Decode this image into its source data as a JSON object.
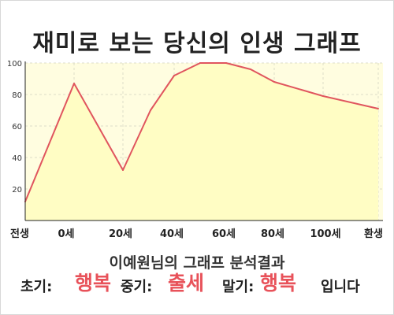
{
  "chart_data": {
    "type": "area",
    "title": "재미로 보는 당신의 인생 그래프",
    "x_tick_labels": [
      "전생",
      "0세",
      "20세",
      "40세",
      "60세",
      "80세",
      "100세",
      "환생"
    ],
    "y_ticks": [
      20,
      40,
      60,
      80,
      100
    ],
    "ylim": [
      0,
      100
    ],
    "grid": true,
    "legend": "none",
    "x": [
      "전생",
      "0세",
      "20세",
      "30세",
      "40세",
      "50세",
      "60세",
      "70세",
      "80세",
      "100세",
      "환생"
    ],
    "values": [
      12,
      87,
      32,
      70,
      92,
      100,
      100,
      96,
      88,
      79,
      71
    ],
    "colors": {
      "line": "#e0555e",
      "fill": "#fffdc4",
      "plot_bg": "#fffde0",
      "grid": "#ddddc8"
    }
  },
  "result": {
    "title": "이예원님의 그래프 분석결과",
    "early_label": "초기:",
    "early_value": "행복",
    "middle_label": "중기:",
    "middle_value": "출세",
    "late_label": "말기:",
    "late_value": "행복",
    "suffix": "입니다"
  }
}
